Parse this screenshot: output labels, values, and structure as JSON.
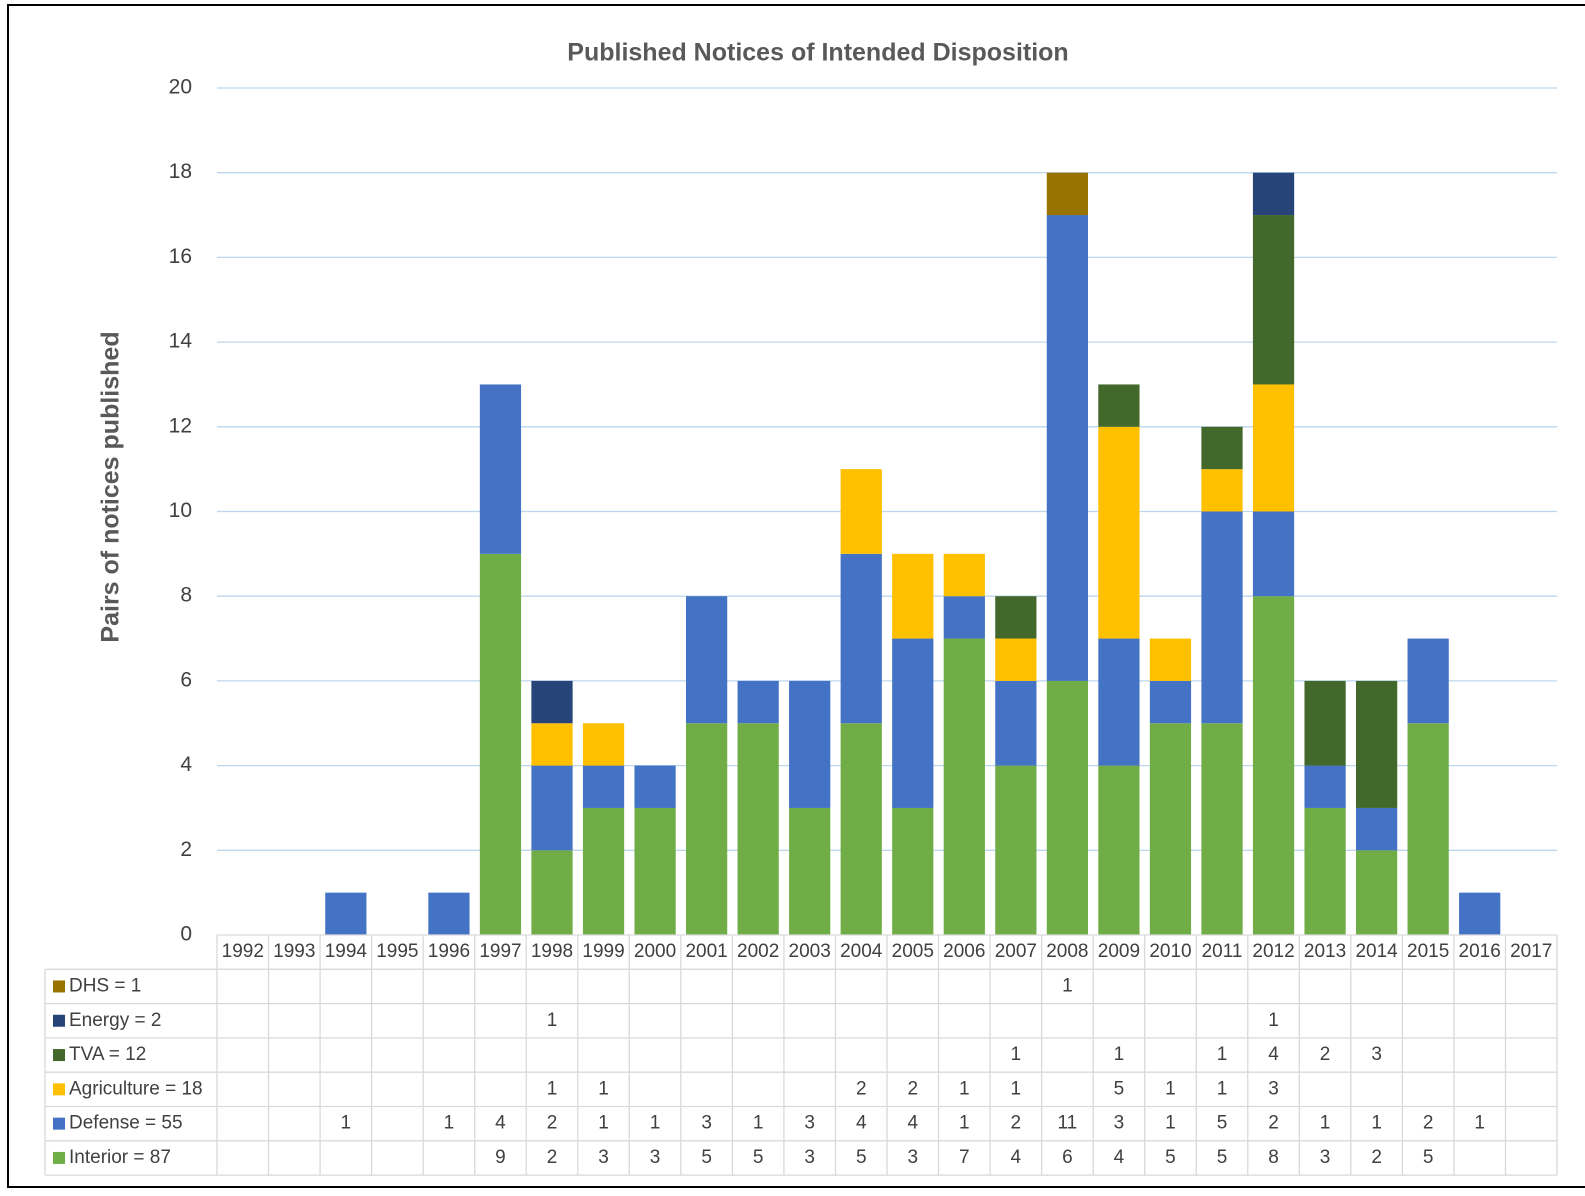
{
  "chart_data": {
    "type": "bar",
    "stacked": true,
    "title": "Published Notices of Intended Disposition",
    "y_label": "Pairs of notices published",
    "categories": [
      "1992",
      "1993",
      "1994",
      "1995",
      "1996",
      "1997",
      "1998",
      "1999",
      "2000",
      "2001",
      "2002",
      "2003",
      "2004",
      "2005",
      "2006",
      "2007",
      "2008",
      "2009",
      "2010",
      "2011",
      "2012",
      "2013",
      "2014",
      "2015",
      "2016",
      "2017"
    ],
    "series": [
      {
        "name": "Interior = 87",
        "color": "#70ad47",
        "values": [
          null,
          null,
          null,
          null,
          null,
          9,
          2,
          3,
          3,
          5,
          5,
          3,
          5,
          3,
          7,
          4,
          6,
          4,
          5,
          5,
          8,
          3,
          2,
          5,
          null,
          null
        ]
      },
      {
        "name": "Defense = 55",
        "color": "#4472c4",
        "values": [
          null,
          null,
          1,
          null,
          1,
          4,
          2,
          1,
          1,
          3,
          1,
          3,
          4,
          4,
          1,
          2,
          11,
          3,
          1,
          5,
          2,
          1,
          1,
          2,
          1,
          null
        ]
      },
      {
        "name": "Agriculture = 18",
        "color": "#ffc000",
        "values": [
          null,
          null,
          null,
          null,
          null,
          null,
          1,
          1,
          null,
          null,
          null,
          null,
          2,
          2,
          1,
          1,
          null,
          5,
          1,
          1,
          3,
          null,
          null,
          null,
          null,
          null
        ]
      },
      {
        "name": "TVA = 12",
        "color": "#43682b",
        "values": [
          null,
          null,
          null,
          null,
          null,
          null,
          null,
          null,
          null,
          null,
          null,
          null,
          null,
          null,
          null,
          1,
          null,
          1,
          null,
          1,
          4,
          2,
          3,
          null,
          null,
          null
        ]
      },
      {
        "name": "Energy = 2",
        "color": "#264478",
        "values": [
          null,
          null,
          null,
          null,
          null,
          null,
          1,
          null,
          null,
          null,
          null,
          null,
          null,
          null,
          null,
          null,
          null,
          null,
          null,
          null,
          1,
          null,
          null,
          null,
          null,
          null
        ]
      },
      {
        "name": "DHS = 1",
        "color": "#997300",
        "values": [
          null,
          null,
          null,
          null,
          null,
          null,
          null,
          null,
          null,
          null,
          null,
          null,
          null,
          null,
          null,
          null,
          1,
          null,
          null,
          null,
          null,
          null,
          null,
          null,
          null,
          null
        ]
      }
    ],
    "ylim": [
      0,
      20
    ],
    "yticks": [
      0,
      2,
      4,
      6,
      8,
      10,
      12,
      14,
      16,
      18,
      20
    ],
    "grid": true,
    "data_table": true
  }
}
